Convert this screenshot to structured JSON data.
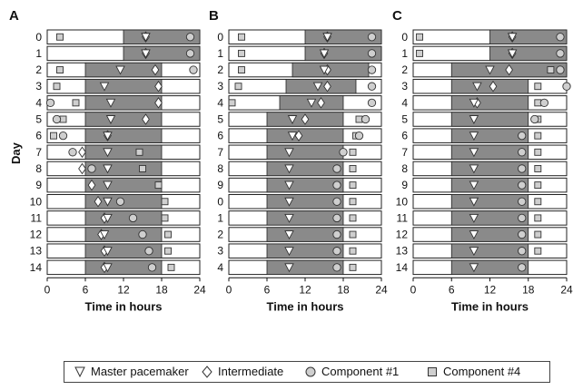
{
  "colors": {
    "night": "#8a8a8a",
    "day": "#ffffff",
    "frame": "#222222",
    "marker_fill": "#cfcfcf",
    "marker_stroke": "#333333"
  },
  "legend": {
    "master": "Master pacemaker",
    "intermediate": "Intermediate",
    "component1": "Component #1",
    "component4": "Component #4"
  },
  "chart_data": [
    {
      "type": "bar",
      "panel": "A",
      "ylabel": "Day",
      "xlabel": "Time in hours",
      "xlim": [
        0,
        24
      ],
      "xticks": [
        0,
        6,
        12,
        18,
        24
      ],
      "day_labels": [
        "0",
        "1",
        "2",
        "3",
        "4",
        "5",
        "6",
        "7",
        "8",
        "9",
        "10",
        "11",
        "12",
        "13",
        "14"
      ],
      "dark_intervals": [
        [
          12,
          24
        ],
        [
          12,
          24
        ],
        [
          6,
          18
        ],
        [
          6,
          18
        ],
        [
          6,
          18
        ],
        [
          6,
          18
        ],
        [
          6,
          18
        ],
        [
          6,
          18
        ],
        [
          6,
          18
        ],
        [
          6,
          18
        ],
        [
          6,
          18
        ],
        [
          6,
          18
        ],
        [
          6,
          18
        ],
        [
          6,
          18
        ],
        [
          6,
          18
        ]
      ],
      "master": [
        15.5,
        15.5,
        11.5,
        9,
        10,
        10,
        9.5,
        9.5,
        9.5,
        9.5,
        9.5,
        9.5,
        9,
        9.5,
        9.5
      ],
      "intermediate": [
        15.5,
        15.5,
        17,
        17.5,
        17.5,
        15.5,
        9.5,
        5.5,
        5.5,
        7,
        8,
        9,
        8.5,
        9,
        9
      ],
      "component1": [
        22.5,
        22.5,
        23,
        null,
        0.5,
        1.5,
        2.5,
        4,
        7,
        null,
        11.5,
        13.5,
        15,
        16,
        16.5
      ],
      "component4": [
        2,
        null,
        2,
        1.5,
        4.5,
        2.5,
        1,
        14.5,
        15,
        17.5,
        18.5,
        18.5,
        19,
        19,
        19.5
      ]
    },
    {
      "type": "bar",
      "panel": "B",
      "xlabel": "Time in hours",
      "xlim": [
        0,
        24
      ],
      "xticks": [
        0,
        6,
        12,
        18,
        24
      ],
      "day_labels": [
        "0",
        "1",
        "2",
        "3",
        "4",
        "5",
        "6",
        "7",
        "8",
        "9",
        "0",
        "1",
        "2",
        "3",
        "4"
      ],
      "dark_intervals": [
        [
          12,
          24
        ],
        [
          12,
          24
        ],
        [
          10,
          22
        ],
        [
          9,
          20
        ],
        [
          8,
          18
        ],
        [
          6,
          18
        ],
        [
          6,
          18
        ],
        [
          6,
          18
        ],
        [
          6,
          18
        ],
        [
          6,
          18
        ],
        [
          6,
          18
        ],
        [
          6,
          18
        ],
        [
          6,
          18
        ],
        [
          6,
          18
        ],
        [
          6,
          18
        ]
      ],
      "master": [
        15.5,
        15,
        15,
        14,
        13,
        10,
        10,
        9.5,
        9.5,
        9.5,
        9.5,
        9.5,
        9.5,
        9.5,
        9.5
      ],
      "intermediate": [
        15.5,
        15,
        15.5,
        15.5,
        14.5,
        12,
        11,
        null,
        null,
        null,
        null,
        null,
        null,
        null,
        null
      ],
      "component1": [
        22.5,
        22.5,
        22.5,
        22.5,
        22.5,
        21.5,
        20.5,
        18,
        17,
        17,
        17,
        17,
        17,
        17,
        17
      ],
      "component4": [
        2,
        2,
        2,
        1.5,
        0.5,
        20.5,
        20,
        19.5,
        19.5,
        19.5,
        19.5,
        19.5,
        19.5,
        19.5,
        19.5
      ]
    },
    {
      "type": "bar",
      "panel": "C",
      "xlabel": "Time in hours",
      "xlim": [
        0,
        24
      ],
      "xticks": [
        0,
        6,
        12,
        18,
        24
      ],
      "day_labels": [
        "0",
        "1",
        "2",
        "3",
        "4",
        "5",
        "6",
        "7",
        "8",
        "9",
        "10",
        "11",
        "12",
        "13",
        "14"
      ],
      "dark_intervals": [
        [
          12,
          24
        ],
        [
          12,
          24
        ],
        [
          6,
          24
        ],
        [
          6,
          18
        ],
        [
          6,
          18
        ],
        [
          6,
          18
        ],
        [
          6,
          18
        ],
        [
          6,
          18
        ],
        [
          6,
          18
        ],
        [
          6,
          18
        ],
        [
          6,
          18
        ],
        [
          6,
          18
        ],
        [
          6,
          18
        ],
        [
          6,
          18
        ],
        [
          6,
          18
        ]
      ],
      "master": [
        15.5,
        15.5,
        12,
        10,
        9.5,
        9.5,
        9.5,
        9.5,
        9.5,
        9.5,
        9.5,
        9.5,
        9.5,
        9.5,
        9.5
      ],
      "intermediate": [
        15.5,
        15.5,
        15,
        12.5,
        10,
        null,
        null,
        null,
        null,
        null,
        null,
        null,
        null,
        null,
        null
      ],
      "component1": [
        23,
        23,
        23,
        24,
        20.5,
        19,
        17,
        17,
        17,
        17,
        17,
        17,
        17,
        17,
        17
      ],
      "component4": [
        1,
        1,
        21.5,
        19.5,
        19.5,
        19.5,
        19.5,
        19.5,
        19.5,
        19.5,
        19.5,
        19.5,
        19.5,
        19.5,
        null
      ]
    }
  ]
}
